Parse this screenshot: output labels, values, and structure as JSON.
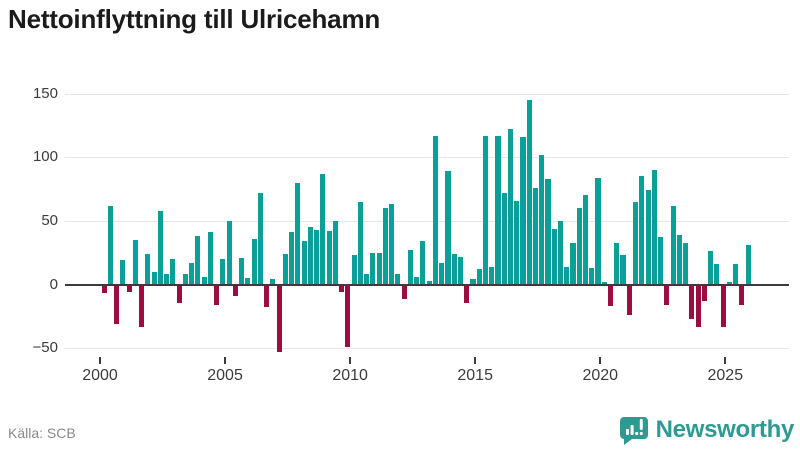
{
  "title": "Nettoinflyttning till Ulricehamn",
  "footer": {
    "source": "Källa: SCB",
    "brand": "Newsworthy"
  },
  "icons": {
    "brand_icon": "newsworthy-speech-bubble-bar-chart-icon"
  },
  "colors": {
    "positive_bar": "#0ba097",
    "negative_bar": "#9c0d3f",
    "axis": "#3b3b3b",
    "gridline": "#e6e6ea",
    "title_text": "#1b1b1b",
    "tick_text": "#3c3c3c",
    "source_text": "#8a8a8a",
    "brand_teal": "#2e9b92"
  },
  "chart_data": {
    "type": "bar",
    "title": "Nettoinflyttning till Ulricehamn",
    "xlabel": "",
    "ylabel": "",
    "x_tick_labels": [
      "2000",
      "2005",
      "2010",
      "2015",
      "2020",
      "2025"
    ],
    "y_tick_values": [
      -50,
      0,
      50,
      100,
      150
    ],
    "ylim": [
      -57,
      157
    ],
    "grid": true,
    "legend": "none",
    "frequency": "quarterly",
    "periods": [
      "2000Q1",
      "2000Q2",
      "2000Q3",
      "2000Q4",
      "2001Q1",
      "2001Q2",
      "2001Q3",
      "2001Q4",
      "2002Q1",
      "2002Q2",
      "2002Q3",
      "2002Q4",
      "2003Q1",
      "2003Q2",
      "2003Q3",
      "2003Q4",
      "2004Q1",
      "2004Q2",
      "2004Q3",
      "2004Q4",
      "2005Q1",
      "2005Q2",
      "2005Q3",
      "2005Q4",
      "2006Q1",
      "2006Q2",
      "2006Q3",
      "2006Q4",
      "2007Q1",
      "2007Q2",
      "2007Q3",
      "2007Q4",
      "2008Q1",
      "2008Q2",
      "2008Q3",
      "2008Q4",
      "2009Q1",
      "2009Q2",
      "2009Q3",
      "2009Q4",
      "2010Q1",
      "2010Q2",
      "2010Q3",
      "2010Q4",
      "2011Q1",
      "2011Q2",
      "2011Q3",
      "2011Q4",
      "2012Q1",
      "2012Q2",
      "2012Q3",
      "2012Q4",
      "2013Q1",
      "2013Q2",
      "2013Q3",
      "2013Q4",
      "2014Q1",
      "2014Q2",
      "2014Q3",
      "2014Q4",
      "2015Q1",
      "2015Q2",
      "2015Q3",
      "2015Q4",
      "2016Q1",
      "2016Q2",
      "2016Q3",
      "2016Q4",
      "2017Q1",
      "2017Q2",
      "2017Q3",
      "2017Q4",
      "2018Q1",
      "2018Q2",
      "2018Q3",
      "2018Q4",
      "2019Q1",
      "2019Q2",
      "2019Q3",
      "2019Q4",
      "2020Q1",
      "2020Q2",
      "2020Q3",
      "2020Q4",
      "2021Q1",
      "2021Q2",
      "2021Q3",
      "2021Q4",
      "2022Q1",
      "2022Q2",
      "2022Q3",
      "2022Q4",
      "2023Q1",
      "2023Q2",
      "2023Q3",
      "2023Q4",
      "2024Q1",
      "2024Q2",
      "2024Q3",
      "2024Q4",
      "2025Q1",
      "2025Q2",
      "2025Q3",
      "2025Q4"
    ],
    "series": [
      {
        "name": "Nettoinflyttning",
        "values": [
          -6,
          62,
          -30,
          19,
          -5,
          35,
          -33,
          24,
          10,
          58,
          8,
          20,
          -14,
          8,
          17,
          38,
          6,
          41,
          -15,
          20,
          50,
          -8,
          21,
          5,
          36,
          72,
          -17,
          4,
          -52,
          24,
          41,
          80,
          34,
          45,
          43,
          87,
          42,
          50,
          -5,
          -48,
          23,
          65,
          8,
          25,
          25,
          60,
          63,
          8,
          -11,
          27,
          6,
          34,
          3,
          117,
          17,
          89,
          24,
          22,
          -14,
          4,
          12,
          117,
          14,
          117,
          72,
          122,
          66,
          116,
          145,
          76,
          102,
          83,
          44,
          50,
          14,
          33,
          60,
          70,
          13,
          84,
          2,
          -16,
          33,
          23,
          -23,
          65,
          85,
          74,
          90,
          37,
          -15,
          62,
          39,
          33,
          -26,
          -33,
          -12,
          26,
          16,
          -33,
          2,
          16,
          -15,
          31
        ]
      }
    ]
  }
}
